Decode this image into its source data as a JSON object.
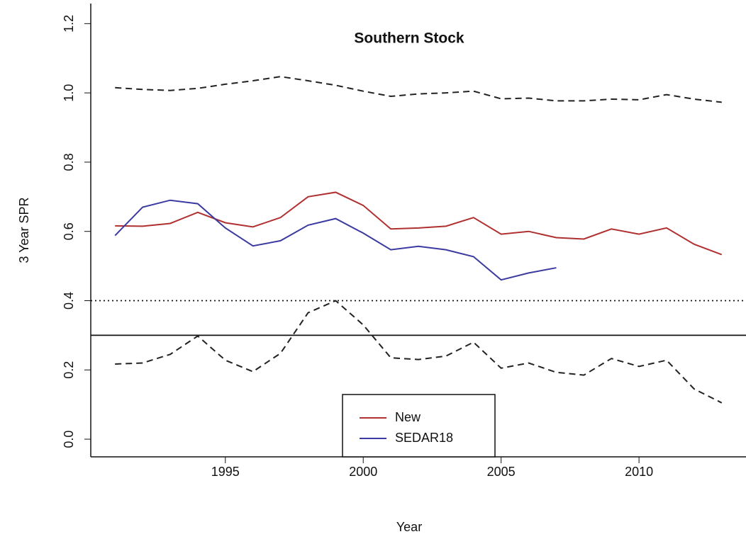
{
  "chart_data": {
    "type": "line",
    "title": "Southern Stock",
    "x_label": "Year",
    "y_label": "3 Year SPR",
    "x": [
      1991,
      1992,
      1993,
      1994,
      1995,
      1996,
      1997,
      1998,
      1999,
      2000,
      2001,
      2002,
      2003,
      2004,
      2005,
      2006,
      2007,
      2008,
      2009,
      2010,
      2011,
      2012,
      2013
    ],
    "series": [
      {
        "name": "New",
        "color": "#b03030",
        "dash": "solid",
        "values": [
          0.616,
          0.615,
          0.623,
          0.655,
          0.625,
          0.613,
          0.64,
          0.7,
          0.713,
          0.675,
          0.607,
          0.61,
          0.615,
          0.64,
          0.592,
          0.6,
          0.582,
          0.578,
          0.607,
          0.592,
          0.61,
          0.563,
          0.533
        ]
      },
      {
        "name": "SEDAR18",
        "color": "#3a3aa0",
        "dash": "solid",
        "values": [
          0.588,
          0.67,
          0.69,
          0.68,
          0.61,
          0.558,
          0.573,
          0.618,
          0.637,
          0.595,
          0.547,
          0.557,
          0.547,
          0.527,
          0.46,
          0.48,
          0.495,
          null,
          null,
          null,
          null,
          null,
          null
        ]
      },
      {
        "color": "#222222",
        "dash": "dashed",
        "values": [
          1.015,
          1.01,
          1.007,
          1.013,
          1.025,
          1.035,
          1.047,
          1.035,
          1.022,
          1.005,
          0.99,
          0.997,
          1.0,
          1.005,
          0.983,
          0.985,
          0.977,
          0.977,
          0.982,
          0.98,
          0.995,
          0.982,
          0.973
        ]
      },
      {
        "color": "#222222",
        "dash": "dashed",
        "values": [
          0.217,
          0.22,
          0.245,
          0.298,
          0.228,
          0.195,
          0.248,
          0.365,
          0.4,
          0.33,
          0.235,
          0.23,
          0.24,
          0.28,
          0.205,
          0.22,
          0.193,
          0.185,
          0.233,
          0.21,
          0.228,
          0.145,
          0.105
        ]
      }
    ],
    "hlines": [
      {
        "value": 0.4,
        "dash": "dotted"
      },
      {
        "value": 0.3,
        "dash": "solid"
      }
    ],
    "xlim": [
      1990.12,
      2013.88
    ],
    "ylim": [
      -0.051,
      1.258
    ],
    "xticks": [
      1995,
      2000,
      2005,
      2010
    ],
    "yticks": [
      {
        "value": 0,
        "label": "0.0"
      },
      0.2,
      0.4,
      0.6,
      0.8,
      {
        "value": 1,
        "label": "1.0"
      },
      1.2
    ],
    "legend": "bottom-center"
  }
}
